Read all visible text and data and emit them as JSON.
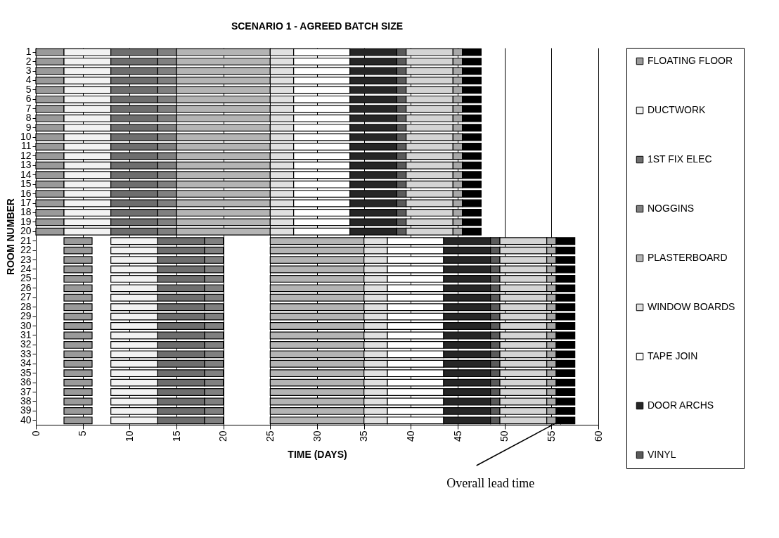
{
  "chart_data": {
    "type": "bar",
    "orientation": "horizontal",
    "title": "SCENARIO 1 - AGREED BATCH SIZE",
    "xlabel": "TIME (DAYS)",
    "ylabel": "ROOM NUMBER",
    "categories": [
      "1",
      "2",
      "3",
      "4",
      "5",
      "6",
      "7",
      "8",
      "9",
      "10",
      "11",
      "12",
      "13",
      "14",
      "15",
      "16",
      "17",
      "18",
      "19",
      "20",
      "21",
      "22",
      "23",
      "24",
      "25",
      "26",
      "27",
      "28",
      "29",
      "30",
      "31",
      "32",
      "33",
      "34",
      "35",
      "36",
      "37",
      "38",
      "39",
      "40"
    ],
    "xlim": [
      0,
      60
    ],
    "xticks": [
      0,
      5,
      10,
      15,
      20,
      25,
      30,
      35,
      40,
      45,
      50,
      55,
      60
    ],
    "grid": "x",
    "legend": "right",
    "annotations": [
      {
        "text": "Overall lead time",
        "x": 56,
        "y": "40"
      }
    ],
    "series": [
      {
        "name": "FLOATING FLOOR",
        "color": "#9a9a9a",
        "base": [
          0,
          0,
          0,
          0,
          0,
          0,
          0,
          0,
          0,
          0,
          0,
          0,
          0,
          0,
          0,
          0,
          0,
          0,
          0,
          0,
          3,
          3,
          3,
          3,
          3,
          3,
          3,
          3,
          3,
          3,
          3,
          3,
          3,
          3,
          3,
          3,
          3,
          3,
          3,
          3
        ],
        "values": [
          3,
          3,
          3,
          3,
          3,
          3,
          3,
          3,
          3,
          3,
          3,
          3,
          3,
          3,
          3,
          3,
          3,
          3,
          3,
          3,
          3,
          3,
          3,
          3,
          3,
          3,
          3,
          3,
          3,
          3,
          3,
          3,
          3,
          3,
          3,
          3,
          3,
          3,
          3,
          3
        ]
      },
      {
        "name": "DUCTWORK",
        "color": "#f2f2f2",
        "base": [
          3,
          3,
          3,
          3,
          3,
          3,
          3,
          3,
          3,
          3,
          3,
          3,
          3,
          3,
          3,
          3,
          3,
          3,
          3,
          3,
          8,
          8,
          8,
          8,
          8,
          8,
          8,
          8,
          8,
          8,
          8,
          8,
          8,
          8,
          8,
          8,
          8,
          8,
          8,
          8
        ],
        "values": [
          5,
          5,
          5,
          5,
          5,
          5,
          5,
          5,
          5,
          5,
          5,
          5,
          5,
          5,
          5,
          5,
          5,
          5,
          5,
          5,
          5,
          5,
          5,
          5,
          5,
          5,
          5,
          5,
          5,
          5,
          5,
          5,
          5,
          5,
          5,
          5,
          5,
          5,
          5,
          5
        ]
      },
      {
        "name": "1ST FIX ELEC",
        "color": "#6e6e6e",
        "base": [
          8,
          8,
          8,
          8,
          8,
          8,
          8,
          8,
          8,
          8,
          8,
          8,
          8,
          8,
          8,
          8,
          8,
          8,
          8,
          8,
          13,
          13,
          13,
          13,
          13,
          13,
          13,
          13,
          13,
          13,
          13,
          13,
          13,
          13,
          13,
          13,
          13,
          13,
          13,
          13
        ],
        "values": [
          5,
          5,
          5,
          5,
          5,
          5,
          5,
          5,
          5,
          5,
          5,
          5,
          5,
          5,
          5,
          5,
          5,
          5,
          5,
          5,
          5,
          5,
          5,
          5,
          5,
          5,
          5,
          5,
          5,
          5,
          5,
          5,
          5,
          5,
          5,
          5,
          5,
          5,
          5,
          5
        ]
      },
      {
        "name": "NOGGINS",
        "color": "#808080",
        "base": [
          13,
          13,
          13,
          13,
          13,
          13,
          13,
          13,
          13,
          13,
          13,
          13,
          13,
          13,
          13,
          13,
          13,
          13,
          13,
          13,
          18,
          18,
          18,
          18,
          18,
          18,
          18,
          18,
          18,
          18,
          18,
          18,
          18,
          18,
          18,
          18,
          18,
          18,
          18,
          18
        ],
        "values": [
          2,
          2,
          2,
          2,
          2,
          2,
          2,
          2,
          2,
          2,
          2,
          2,
          2,
          2,
          2,
          2,
          2,
          2,
          2,
          2,
          2,
          2,
          2,
          2,
          2,
          2,
          2,
          2,
          2,
          2,
          2,
          2,
          2,
          2,
          2,
          2,
          2,
          2,
          2,
          2
        ]
      },
      {
        "name": "PLASTERBOARD",
        "color": "#b4b4b4",
        "base": [
          15,
          15,
          15,
          15,
          15,
          15,
          15,
          15,
          15,
          15,
          15,
          15,
          15,
          15,
          15,
          15,
          15,
          15,
          15,
          15,
          25,
          25,
          25,
          25,
          25,
          25,
          25,
          25,
          25,
          25,
          25,
          25,
          25,
          25,
          25,
          25,
          25,
          25,
          25,
          25
        ],
        "values": [
          10,
          10,
          10,
          10,
          10,
          10,
          10,
          10,
          10,
          10,
          10,
          10,
          10,
          10,
          10,
          10,
          10,
          10,
          10,
          10,
          10,
          10,
          10,
          10,
          10,
          10,
          10,
          10,
          10,
          10,
          10,
          10,
          10,
          10,
          10,
          10,
          10,
          10,
          10,
          10
        ]
      },
      {
        "name": "WINDOW BOARDS",
        "color": "#e0e0e0",
        "base": [
          25,
          25,
          25,
          25,
          25,
          25,
          25,
          25,
          25,
          25,
          25,
          25,
          25,
          25,
          25,
          25,
          25,
          25,
          25,
          25,
          35,
          35,
          35,
          35,
          35,
          35,
          35,
          35,
          35,
          35,
          35,
          35,
          35,
          35,
          35,
          35,
          35,
          35,
          35,
          35
        ],
        "values": [
          2.5,
          2.5,
          2.5,
          2.5,
          2.5,
          2.5,
          2.5,
          2.5,
          2.5,
          2.5,
          2.5,
          2.5,
          2.5,
          2.5,
          2.5,
          2.5,
          2.5,
          2.5,
          2.5,
          2.5,
          2.5,
          2.5,
          2.5,
          2.5,
          2.5,
          2.5,
          2.5,
          2.5,
          2.5,
          2.5,
          2.5,
          2.5,
          2.5,
          2.5,
          2.5,
          2.5,
          2.5,
          2.5,
          2.5,
          2.5
        ]
      },
      {
        "name": "TAPE JOIN",
        "color": "#ffffff",
        "base": [
          27.5,
          27.5,
          27.5,
          27.5,
          27.5,
          27.5,
          27.5,
          27.5,
          27.5,
          27.5,
          27.5,
          27.5,
          27.5,
          27.5,
          27.5,
          27.5,
          27.5,
          27.5,
          27.5,
          27.5,
          37.5,
          37.5,
          37.5,
          37.5,
          37.5,
          37.5,
          37.5,
          37.5,
          37.5,
          37.5,
          37.5,
          37.5,
          37.5,
          37.5,
          37.5,
          37.5,
          37.5,
          37.5,
          37.5,
          37.5
        ],
        "values": [
          6,
          6,
          6,
          6,
          6,
          6,
          6,
          6,
          6,
          6,
          6,
          6,
          6,
          6,
          6,
          6,
          6,
          6,
          6,
          6,
          6,
          6,
          6,
          6,
          6,
          6,
          6,
          6,
          6,
          6,
          6,
          6,
          6,
          6,
          6,
          6,
          6,
          6,
          6,
          6
        ]
      },
      {
        "name": "DOOR ARCHS",
        "color": "#262626",
        "base": [
          33.5,
          33.5,
          33.5,
          33.5,
          33.5,
          33.5,
          33.5,
          33.5,
          33.5,
          33.5,
          33.5,
          33.5,
          33.5,
          33.5,
          33.5,
          33.5,
          33.5,
          33.5,
          33.5,
          33.5,
          43.5,
          43.5,
          43.5,
          43.5,
          43.5,
          43.5,
          43.5,
          43.5,
          43.5,
          43.5,
          43.5,
          43.5,
          43.5,
          43.5,
          43.5,
          43.5,
          43.5,
          43.5,
          43.5,
          43.5
        ],
        "values": [
          5,
          5,
          5,
          5,
          5,
          5,
          5,
          5,
          5,
          5,
          5,
          5,
          5,
          5,
          5,
          5,
          5,
          5,
          5,
          5,
          5,
          5,
          5,
          5,
          5,
          5,
          5,
          5,
          5,
          5,
          5,
          5,
          5,
          5,
          5,
          5,
          5,
          5,
          5,
          5
        ]
      },
      {
        "name": "VINYL",
        "color": "#5a5a5a",
        "base": [
          38.5,
          38.5,
          38.5,
          38.5,
          38.5,
          38.5,
          38.5,
          38.5,
          38.5,
          38.5,
          38.5,
          38.5,
          38.5,
          38.5,
          38.5,
          38.5,
          38.5,
          38.5,
          38.5,
          38.5,
          48.5,
          48.5,
          48.5,
          48.5,
          48.5,
          48.5,
          48.5,
          48.5,
          48.5,
          48.5,
          48.5,
          48.5,
          48.5,
          48.5,
          48.5,
          48.5,
          48.5,
          48.5,
          48.5,
          48.5
        ],
        "values": [
          1,
          1,
          1,
          1,
          1,
          1,
          1,
          1,
          1,
          1,
          1,
          1,
          1,
          1,
          1,
          1,
          1,
          1,
          1,
          1,
          1,
          1,
          1,
          1,
          1,
          1,
          1,
          1,
          1,
          1,
          1,
          1,
          1,
          1,
          1,
          1,
          1,
          1,
          1,
          1
        ]
      },
      {
        "color": "#d4d4d4",
        "base": [
          39.5,
          39.5,
          39.5,
          39.5,
          39.5,
          39.5,
          39.5,
          39.5,
          39.5,
          39.5,
          39.5,
          39.5,
          39.5,
          39.5,
          39.5,
          39.5,
          39.5,
          39.5,
          39.5,
          39.5,
          49.5,
          49.5,
          49.5,
          49.5,
          49.5,
          49.5,
          49.5,
          49.5,
          49.5,
          49.5,
          49.5,
          49.5,
          49.5,
          49.5,
          49.5,
          49.5,
          49.5,
          49.5,
          49.5,
          49.5
        ],
        "values": [
          5,
          5,
          5,
          5,
          5,
          5,
          5,
          5,
          5,
          5,
          5,
          5,
          5,
          5,
          5,
          5,
          5,
          5,
          5,
          5,
          5,
          5,
          5,
          5,
          5,
          5,
          5,
          5,
          5,
          5,
          5,
          5,
          5,
          5,
          5,
          5,
          5,
          5,
          5,
          5
        ]
      },
      {
        "color": "#a8a8a8",
        "base": [
          44.5,
          44.5,
          44.5,
          44.5,
          44.5,
          44.5,
          44.5,
          44.5,
          44.5,
          44.5,
          44.5,
          44.5,
          44.5,
          44.5,
          44.5,
          44.5,
          44.5,
          44.5,
          44.5,
          44.5,
          54.5,
          54.5,
          54.5,
          54.5,
          54.5,
          54.5,
          54.5,
          54.5,
          54.5,
          54.5,
          54.5,
          54.5,
          54.5,
          54.5,
          54.5,
          54.5,
          54.5,
          54.5,
          54.5,
          54.5
        ],
        "values": [
          1,
          1,
          1,
          1,
          1,
          1,
          1,
          1,
          1,
          1,
          1,
          1,
          1,
          1,
          1,
          1,
          1,
          1,
          1,
          1,
          1,
          1,
          1,
          1,
          1,
          1,
          1,
          1,
          1,
          1,
          1,
          1,
          1,
          1,
          1,
          1,
          1,
          1,
          1,
          1
        ]
      },
      {
        "color": "#000000",
        "base": [
          45.5,
          45.5,
          45.5,
          45.5,
          45.5,
          45.5,
          45.5,
          45.5,
          45.5,
          45.5,
          45.5,
          45.5,
          45.5,
          45.5,
          45.5,
          45.5,
          45.5,
          45.5,
          45.5,
          45.5,
          55.5,
          55.5,
          55.5,
          55.5,
          55.5,
          55.5,
          55.5,
          55.5,
          55.5,
          55.5,
          55.5,
          55.5,
          55.5,
          55.5,
          55.5,
          55.5,
          55.5,
          55.5,
          55.5,
          55.5
        ],
        "values": [
          2,
          2,
          2,
          2,
          2,
          2,
          2,
          2,
          2,
          2,
          2,
          2,
          2,
          2,
          2,
          2,
          2,
          2,
          2,
          2,
          2,
          2,
          2,
          2,
          2,
          2,
          2,
          2,
          2,
          2,
          2,
          2,
          2,
          2,
          2,
          2,
          2,
          2,
          2,
          2
        ]
      }
    ]
  }
}
